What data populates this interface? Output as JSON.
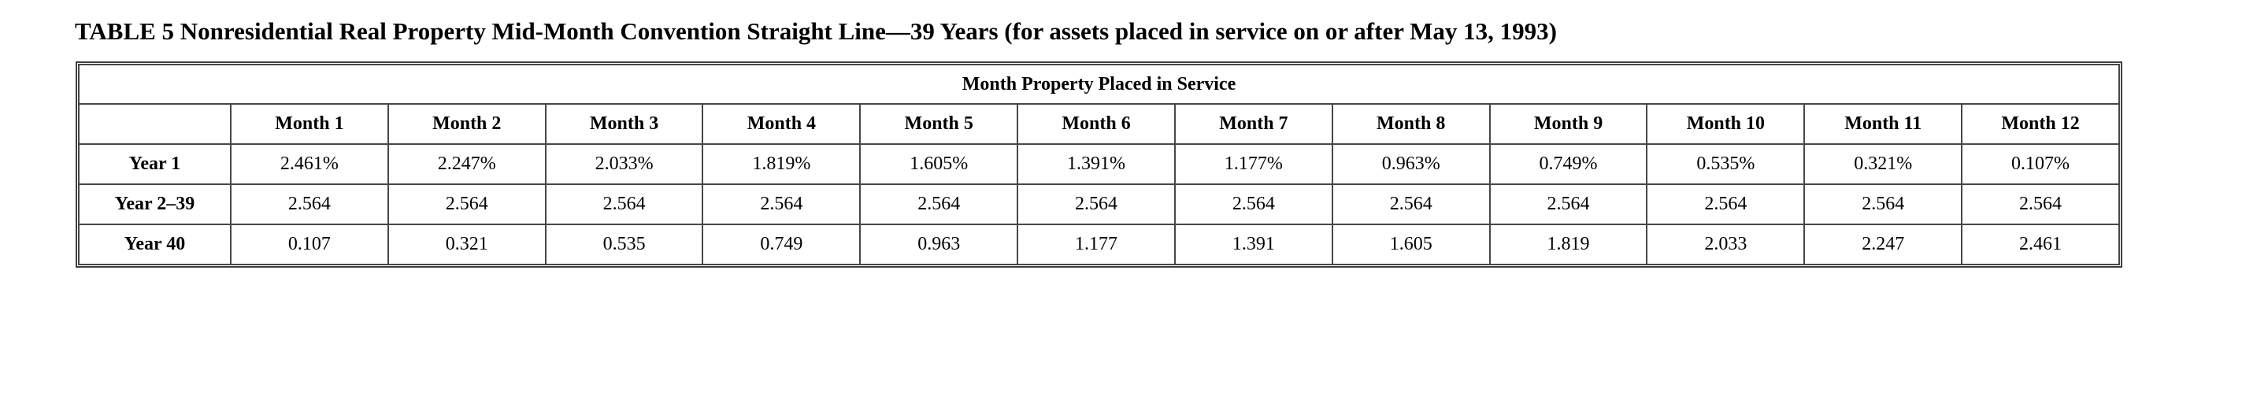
{
  "title": "TABLE 5 Nonresidential Real Property Mid-Month Convention Straight Line—39 Years (for assets placed in service on or after May 13, 1993)",
  "table": {
    "group_header": "Month Property Placed in Service",
    "corner_label": "",
    "column_headers": [
      "Month 1",
      "Month 2",
      "Month 3",
      "Month 4",
      "Month 5",
      "Month 6",
      "Month 7",
      "Month 8",
      "Month 9",
      "Month 10",
      "Month 11",
      "Month 12"
    ],
    "rows": [
      {
        "label": "Year 1",
        "values": [
          "2.461%",
          "2.247%",
          "2.033%",
          "1.819%",
          "1.605%",
          "1.391%",
          "1.177%",
          "0.963%",
          "0.749%",
          "0.535%",
          "0.321%",
          "0.107%"
        ]
      },
      {
        "label": "Year 2–39",
        "values": [
          "2.564",
          "2.564",
          "2.564",
          "2.564",
          "2.564",
          "2.564",
          "2.564",
          "2.564",
          "2.564",
          "2.564",
          "2.564",
          "2.564"
        ]
      },
      {
        "label": "Year 40",
        "values": [
          "0.107",
          "0.321",
          "0.535",
          "0.749",
          "0.963",
          "1.177",
          "1.391",
          "1.605",
          "1.819",
          "2.033",
          "2.247",
          "2.461"
        ]
      }
    ]
  },
  "colors": {
    "background": "#ffffff",
    "text": "#000000",
    "border": "#474747",
    "outer_border": "#3e3e3e"
  }
}
